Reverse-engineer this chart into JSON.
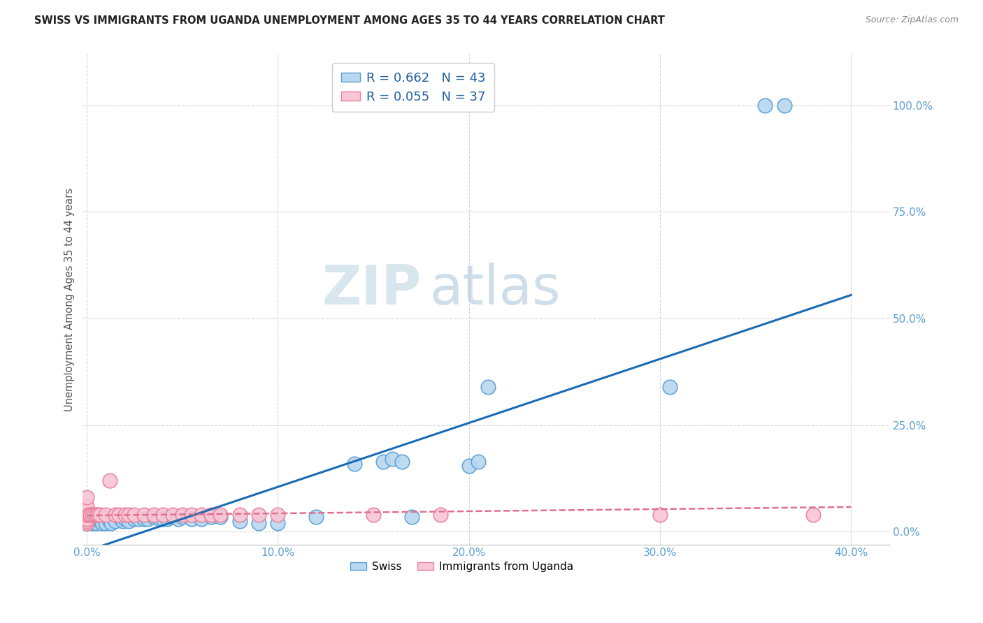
{
  "title": "SWISS VS IMMIGRANTS FROM UGANDA UNEMPLOYMENT AMONG AGES 35 TO 44 YEARS CORRELATION CHART",
  "source": "Source: ZipAtlas.com",
  "ylabel": "Unemployment Among Ages 35 to 44 years",
  "xlim": [
    -0.002,
    0.42
  ],
  "ylim": [
    -0.03,
    1.12
  ],
  "xticks": [
    0.0,
    0.1,
    0.2,
    0.3,
    0.4
  ],
  "yticks": [
    0.0,
    0.25,
    0.5,
    0.75,
    1.0
  ],
  "xtick_labels": [
    "0.0%",
    "10.0%",
    "20.0%",
    "30.0%",
    "40.0%"
  ],
  "ytick_labels": [
    "0.0%",
    "25.0%",
    "50.0%",
    "75.0%",
    "100.0%"
  ],
  "swiss_color_face": "#b8d8f0",
  "swiss_color_edge": "#5a9fd4",
  "uganda_color_face": "#f9c6d5",
  "uganda_color_edge": "#e8809a",
  "swiss_line_color": "#1a6bb5",
  "uganda_line_color": "#e07090",
  "swiss_R": 0.662,
  "swiss_N": 43,
  "uganda_R": 0.055,
  "uganda_N": 37,
  "watermark_zip": "ZIP",
  "watermark_atlas": "atlas",
  "background_color": "#ffffff",
  "grid_color": "#cccccc",
  "title_color": "#222222",
  "tick_color": "#5a9fd4",
  "right_tick_color": "#5a9fd4",
  "swiss_line_x0": 0.0,
  "swiss_line_x1": 0.4,
  "swiss_line_y0": -0.045,
  "swiss_line_y1": 0.555,
  "uganda_line_x0": 0.0,
  "uganda_line_x1": 0.4,
  "uganda_line_y0": 0.038,
  "uganda_line_y1": 0.058,
  "swiss_x": [
    0.0,
    0.003,
    0.005,
    0.007,
    0.008,
    0.01,
    0.012,
    0.013,
    0.015,
    0.018,
    0.019,
    0.02,
    0.022,
    0.025,
    0.027,
    0.03,
    0.032,
    0.035,
    0.038,
    0.04,
    0.042,
    0.045,
    0.048,
    0.05,
    0.055,
    0.06,
    0.065,
    0.07,
    0.08,
    0.09,
    0.1,
    0.12,
    0.14,
    0.155,
    0.16,
    0.165,
    0.17,
    0.2,
    0.205,
    0.21,
    0.305,
    0.355,
    0.365
  ],
  "swiss_y": [
    0.02,
    0.02,
    0.02,
    0.025,
    0.02,
    0.02,
    0.025,
    0.02,
    0.025,
    0.03,
    0.025,
    0.03,
    0.025,
    0.03,
    0.03,
    0.03,
    0.03,
    0.035,
    0.03,
    0.03,
    0.03,
    0.035,
    0.03,
    0.035,
    0.03,
    0.03,
    0.035,
    0.035,
    0.025,
    0.02,
    0.02,
    0.035,
    0.16,
    0.165,
    0.17,
    0.165,
    0.035,
    0.155,
    0.165,
    0.34,
    0.34,
    1.0,
    1.0
  ],
  "uganda_x": [
    0.0,
    0.0,
    0.0,
    0.0,
    0.0,
    0.0,
    0.0,
    0.001,
    0.002,
    0.003,
    0.004,
    0.005,
    0.006,
    0.007,
    0.01,
    0.012,
    0.015,
    0.017,
    0.02,
    0.022,
    0.025,
    0.03,
    0.035,
    0.04,
    0.045,
    0.05,
    0.055,
    0.06,
    0.065,
    0.07,
    0.08,
    0.09,
    0.1,
    0.15,
    0.185,
    0.3,
    0.38
  ],
  "uganda_y": [
    0.02,
    0.025,
    0.03,
    0.04,
    0.05,
    0.06,
    0.08,
    0.04,
    0.04,
    0.04,
    0.04,
    0.04,
    0.04,
    0.04,
    0.04,
    0.12,
    0.04,
    0.04,
    0.04,
    0.04,
    0.04,
    0.04,
    0.04,
    0.04,
    0.04,
    0.04,
    0.04,
    0.04,
    0.04,
    0.04,
    0.04,
    0.04,
    0.04,
    0.04,
    0.04,
    0.04,
    0.04
  ]
}
